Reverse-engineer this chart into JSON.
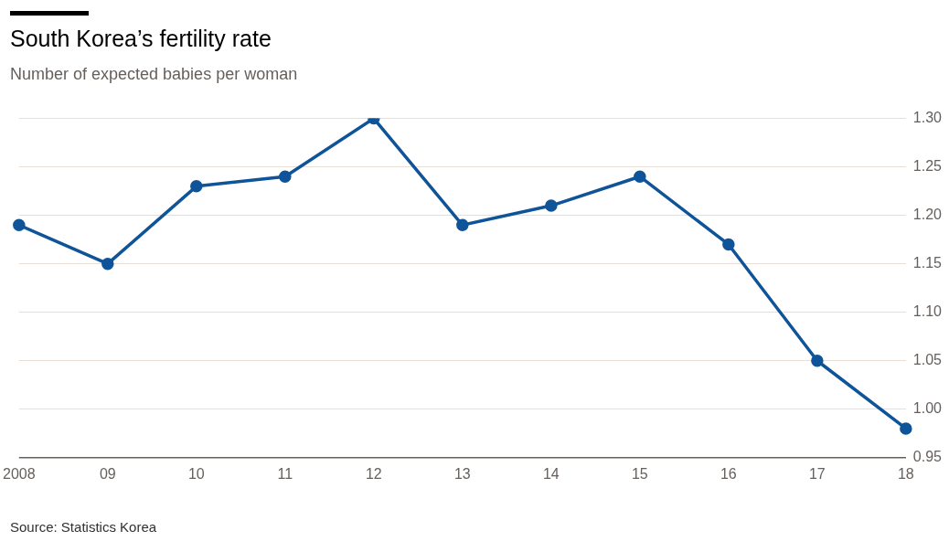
{
  "chart_data": {
    "type": "line",
    "title": "South Korea’s fertility rate",
    "subtitle": "Number of expected babies per woman",
    "categories": [
      "2008",
      "09",
      "10",
      "11",
      "12",
      "13",
      "14",
      "15",
      "16",
      "17",
      "18"
    ],
    "values": [
      1.19,
      1.15,
      1.23,
      1.24,
      1.3,
      1.19,
      1.21,
      1.24,
      1.17,
      1.05,
      0.98
    ],
    "color": "#0f5499",
    "ylim": [
      0.95,
      1.3
    ],
    "yticks": [
      0.95,
      {
        "value": 1,
        "label": "1.00"
      },
      1.05,
      {
        "value": 1.1,
        "label": "1.10"
      },
      1.15,
      {
        "value": 1.2,
        "label": "1.20"
      },
      1.25,
      {
        "value": 1.3,
        "label": "1.30"
      }
    ],
    "grid": "y",
    "marker": "circle",
    "line_style": "solid",
    "annotations": [
      "Source: Statistics Korea"
    ]
  }
}
